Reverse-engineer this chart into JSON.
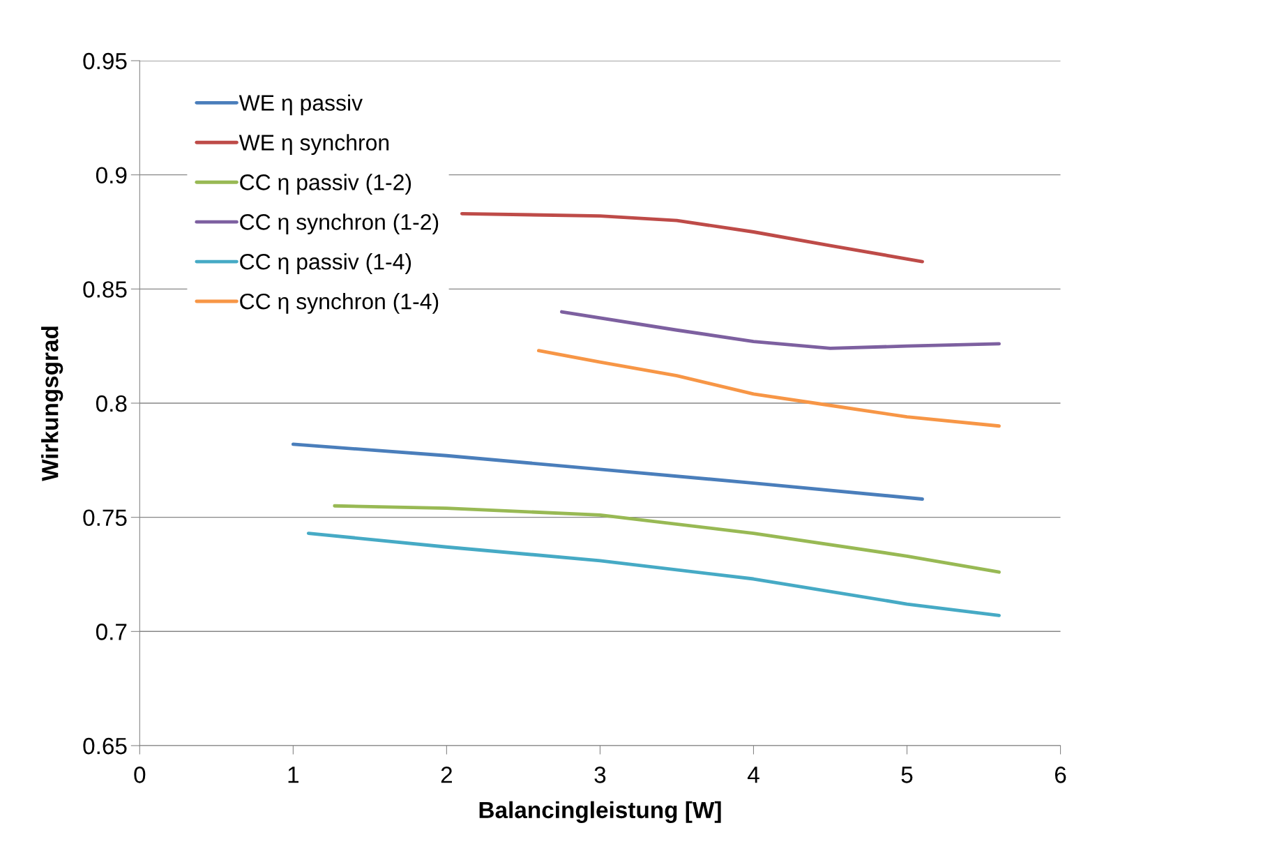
{
  "chart_data": {
    "type": "line",
    "xlabel": "Balancingleistung [W]",
    "ylabel": "Wirkungsgrad",
    "xlim": [
      0,
      6
    ],
    "xticks": [
      0,
      1,
      2,
      3,
      4,
      5,
      6
    ],
    "ylim": [
      0.65,
      0.95
    ],
    "yticks": [
      0.65,
      0.7,
      0.75,
      0.8,
      0.85,
      0.9,
      0.95
    ],
    "grid": "y",
    "legend": "top left",
    "marker": "none",
    "line_style": "solid",
    "series": [
      {
        "name": "WE η passiv",
        "color": "#4a7ebb",
        "x": [
          1.0,
          2.0,
          3.0,
          4.0,
          5.1
        ],
        "values": [
          0.782,
          0.777,
          0.771,
          0.765,
          0.758
        ]
      },
      {
        "name": "WE η synchron",
        "color": "#be4b48",
        "x": [
          2.1,
          3.0,
          3.5,
          4.0,
          4.5,
          5.1
        ],
        "values": [
          0.883,
          0.882,
          0.88,
          0.875,
          0.869,
          0.862
        ]
      },
      {
        "name": "CC η passiv (1-2)",
        "color": "#98b954",
        "x": [
          1.27,
          2.0,
          3.0,
          4.0,
          5.0,
          5.6
        ],
        "values": [
          0.755,
          0.754,
          0.751,
          0.743,
          0.733,
          0.726
        ]
      },
      {
        "name": "CC η synchron (1-2)",
        "color": "#7d60a0",
        "x": [
          2.75,
          3.5,
          4.0,
          4.5,
          5.0,
          5.6
        ],
        "values": [
          0.84,
          0.832,
          0.827,
          0.824,
          0.825,
          0.826
        ]
      },
      {
        "name": "CC η passiv (1-4)",
        "color": "#46aac5",
        "x": [
          1.1,
          2.0,
          3.0,
          4.0,
          5.0,
          5.6
        ],
        "values": [
          0.743,
          0.737,
          0.731,
          0.723,
          0.712,
          0.707
        ]
      },
      {
        "name": "CC η synchron (1-4)",
        "color": "#f79646",
        "x": [
          2.6,
          3.0,
          3.5,
          4.0,
          4.5,
          5.0,
          5.6
        ],
        "values": [
          0.823,
          0.818,
          0.812,
          0.804,
          0.799,
          0.794,
          0.79
        ]
      }
    ]
  }
}
